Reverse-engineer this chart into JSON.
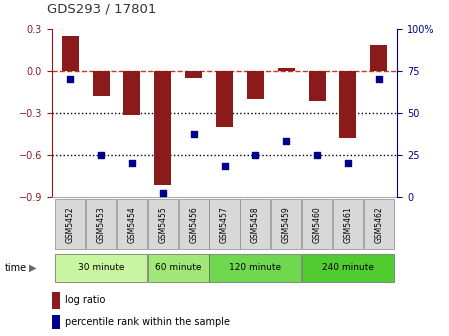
{
  "title": "GDS293 / 17801",
  "samples": [
    "GSM5452",
    "GSM5453",
    "GSM5454",
    "GSM5455",
    "GSM5456",
    "GSM5457",
    "GSM5458",
    "GSM5459",
    "GSM5460",
    "GSM5461",
    "GSM5462"
  ],
  "log_ratio": [
    0.25,
    -0.18,
    -0.32,
    -0.82,
    -0.05,
    -0.4,
    -0.2,
    0.02,
    -0.22,
    -0.48,
    0.18
  ],
  "percentile": [
    70,
    25,
    20,
    2,
    37,
    18,
    25,
    33,
    25,
    20,
    70
  ],
  "ylim_left": [
    -0.9,
    0.3
  ],
  "ylim_right": [
    0,
    100
  ],
  "yticks_left": [
    -0.9,
    -0.6,
    -0.3,
    0.0,
    0.3
  ],
  "yticks_right": [
    0,
    25,
    50,
    75,
    100
  ],
  "bar_color": "#8B1A1A",
  "scatter_color": "#00008B",
  "dashed_color": "#C0392B",
  "groups": [
    {
      "label": "30 minute",
      "start": 0,
      "end": 3,
      "color": "#c8f5a0"
    },
    {
      "label": "60 minute",
      "start": 3,
      "end": 5,
      "color": "#a0e878"
    },
    {
      "label": "120 minute",
      "start": 5,
      "end": 8,
      "color": "#70d850"
    },
    {
      "label": "240 minute",
      "start": 8,
      "end": 11,
      "color": "#50cc30"
    }
  ],
  "time_label": "time",
  "legend_log": "log ratio",
  "legend_pct": "percentile rank within the sample",
  "bar_width": 0.55,
  "dotted_line_color": "#000000"
}
